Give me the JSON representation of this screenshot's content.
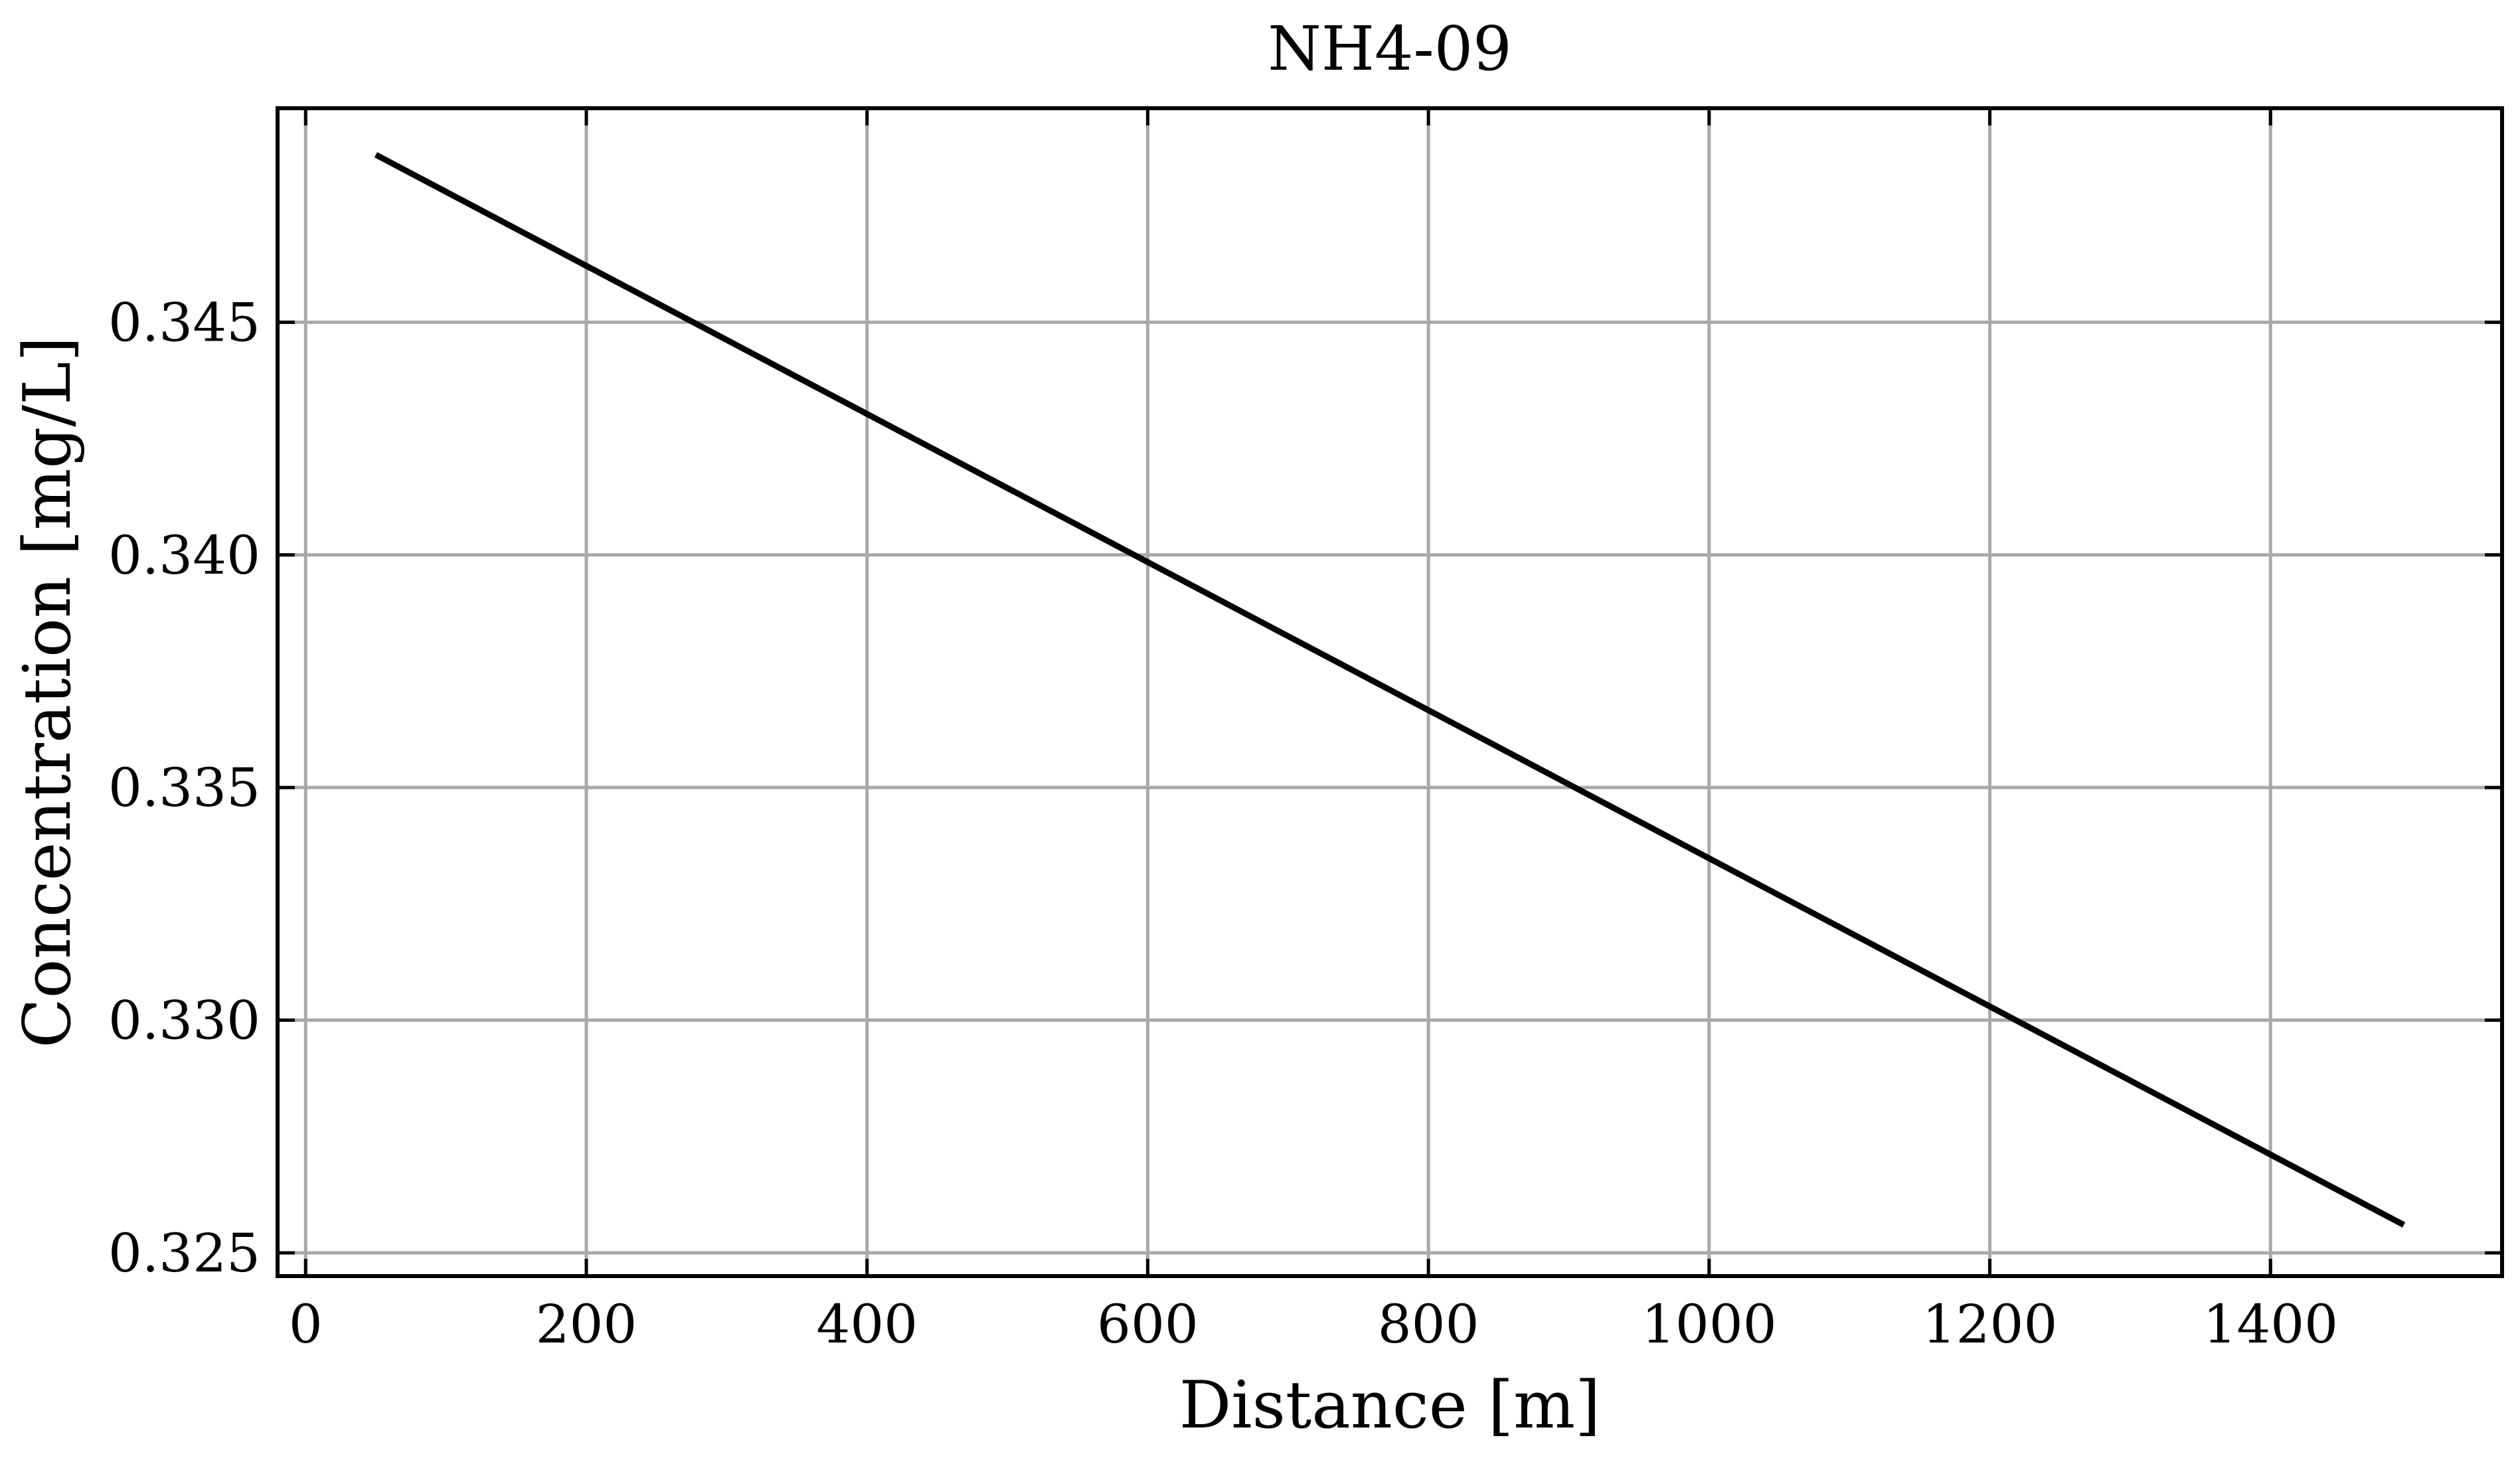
{
  "chart_data": {
    "type": "line",
    "title": "NH4-09",
    "xlabel": "Distance [m]",
    "ylabel": "Concentration [mg/L]",
    "xlim": [
      -20,
      1565
    ],
    "ylim": [
      0.3245,
      0.3496
    ],
    "xticks": [
      0,
      200,
      400,
      600,
      800,
      1000,
      1200,
      1400
    ],
    "xtick_labels": [
      "0",
      "200",
      "400",
      "600",
      "800",
      "1000",
      "1200",
      "1400"
    ],
    "yticks": [
      0.325,
      0.33,
      0.335,
      0.34,
      0.345
    ],
    "ytick_labels": [
      "0.325",
      "0.330",
      "0.335",
      "0.340",
      "0.345"
    ],
    "grid": true,
    "series": [
      {
        "color": "#000000",
        "x": [
          50,
          1495
        ],
        "y": [
          0.3486,
          0.3256
        ]
      }
    ]
  }
}
